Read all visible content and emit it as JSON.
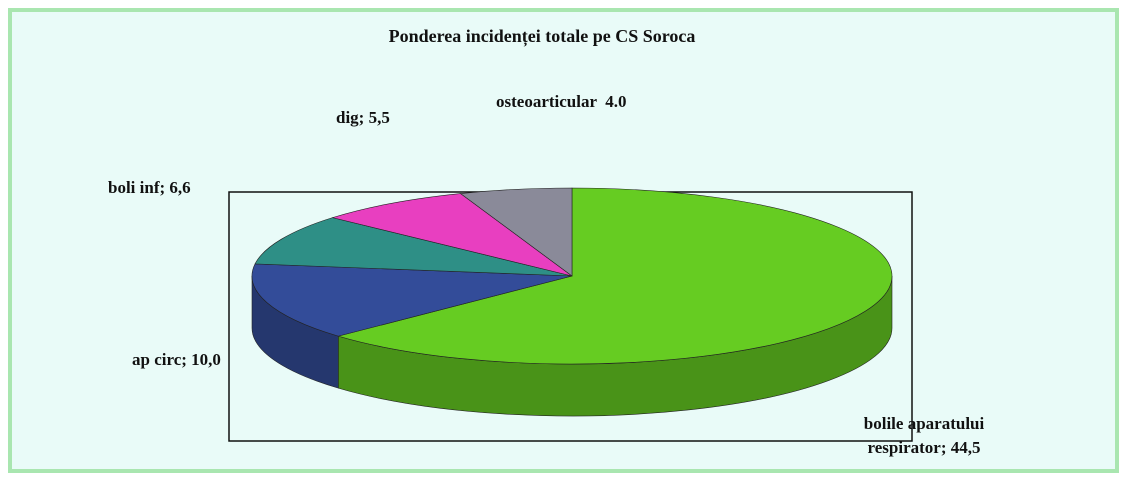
{
  "chart_data": {
    "type": "pie3d",
    "title": "Ponderea incidenței totale pe CS Soroca",
    "values": [
      44.5,
      10.0,
      6.6,
      5.5,
      4.0
    ],
    "value_labels": [
      "bolile aparatului respirator; 44,5",
      "ap circ; 10,0",
      "boli inf; 6,6",
      "dig; 5,5",
      "osteoarticular  4.0"
    ],
    "colors": [
      "#66cc22",
      "#334c99",
      "#2e8f86",
      "#e83fc0",
      "#8a8a99"
    ]
  }
}
